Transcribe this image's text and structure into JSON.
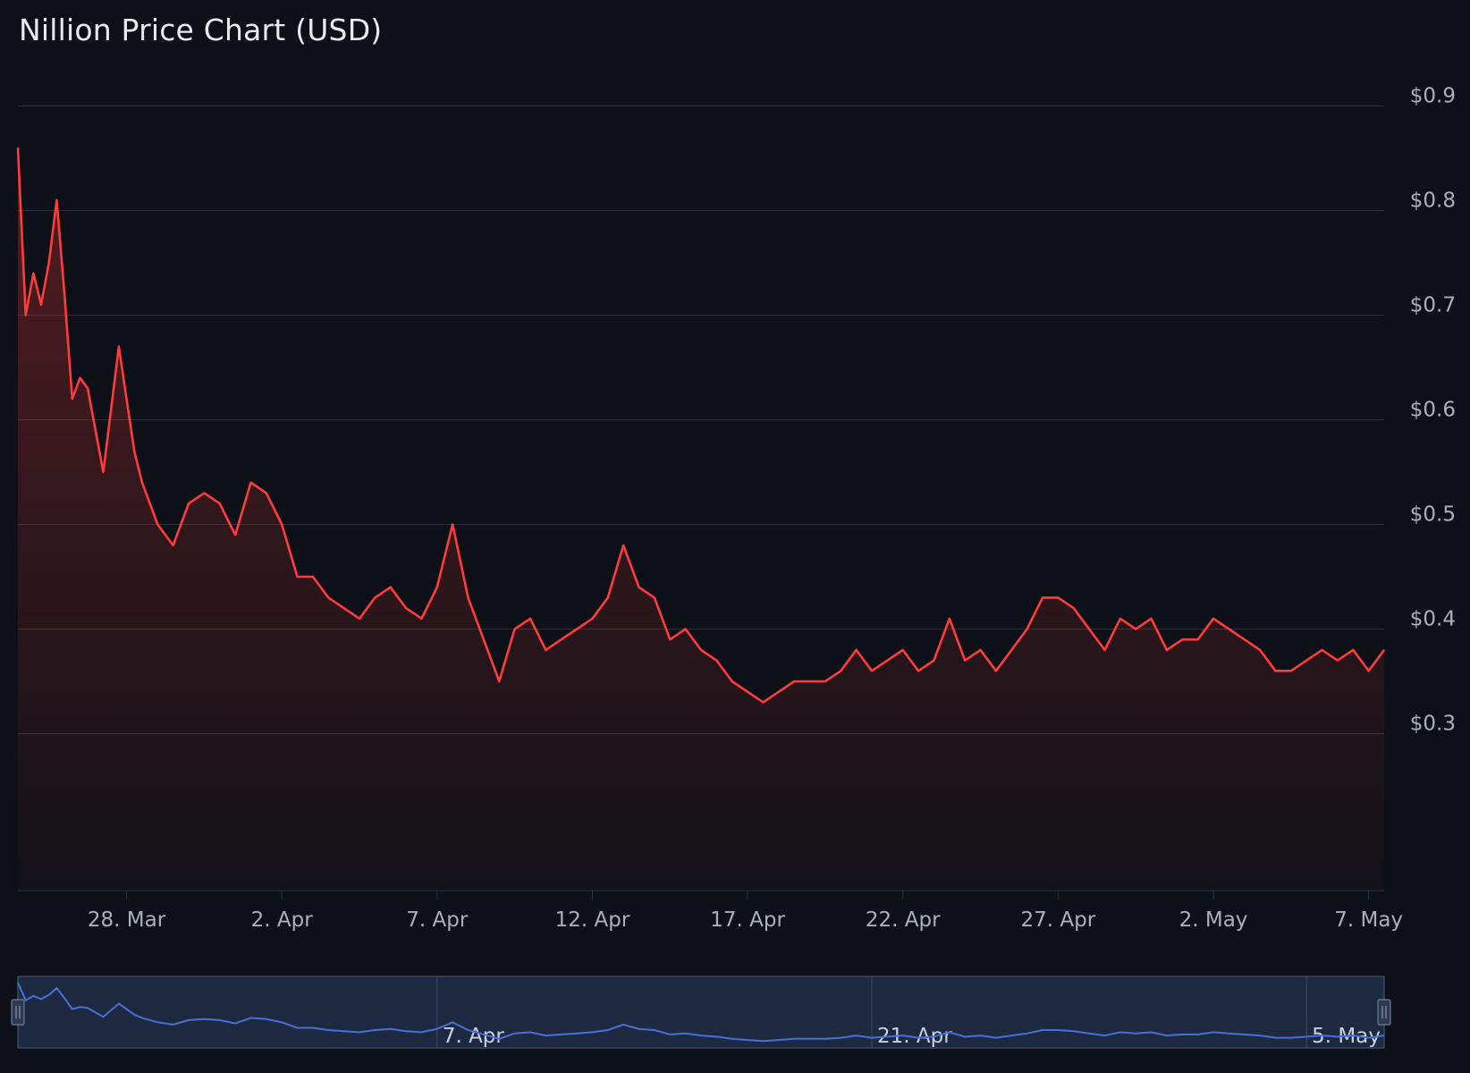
{
  "chart_data": {
    "type": "area",
    "title": "Nillion Price Chart (USD)",
    "xlabel": "",
    "ylabel": "",
    "ylim": [
      0.15,
      0.95
    ],
    "y_ticks": [
      0.3,
      0.4,
      0.5,
      0.6,
      0.7,
      0.8,
      0.9
    ],
    "y_tick_labels": [
      "$0.3",
      "$0.4",
      "$0.5",
      "$0.6",
      "$0.7",
      "$0.8",
      "$0.9"
    ],
    "x_ticks": [
      "2025-03-28",
      "2025-04-02",
      "2025-04-07",
      "2025-04-12",
      "2025-04-17",
      "2025-04-22",
      "2025-04-27",
      "2025-05-02",
      "2025-05-07"
    ],
    "x_tick_labels": [
      "28. Mar",
      "2. Apr",
      "7. Apr",
      "12. Apr",
      "17. Apr",
      "22. Apr",
      "27. Apr",
      "2. May",
      "7. May"
    ],
    "xlim": [
      "2025-03-24T12:00",
      "2025-05-07T12:00"
    ],
    "grid": true,
    "line_color": "#ff3b3b",
    "area_color": "#ff3b3b",
    "series": [
      {
        "x": [
          "2025-03-24T12:00",
          "2025-03-24T18:00",
          "2025-03-25T00:00",
          "2025-03-25T06:00",
          "2025-03-25T12:00",
          "2025-03-25T18:00",
          "2025-03-26T00:00",
          "2025-03-26T06:00",
          "2025-03-26T12:00",
          "2025-03-26T18:00",
          "2025-03-27T00:00",
          "2025-03-27T06:00",
          "2025-03-27T12:00",
          "2025-03-27T18:00",
          "2025-03-28T00:00",
          "2025-03-28T06:00",
          "2025-03-28T12:00",
          "2025-03-28T18:00",
          "2025-03-29T00:00",
          "2025-03-29T12:00",
          "2025-03-30T00:00",
          "2025-03-30T12:00",
          "2025-03-31T00:00",
          "2025-03-31T12:00",
          "2025-04-01T00:00",
          "2025-04-01T12:00",
          "2025-04-02T00:00",
          "2025-04-02T12:00",
          "2025-04-03T00:00",
          "2025-04-03T12:00",
          "2025-04-04T00:00",
          "2025-04-04T12:00",
          "2025-04-05T00:00",
          "2025-04-05T12:00",
          "2025-04-06T00:00",
          "2025-04-06T12:00",
          "2025-04-07T00:00",
          "2025-04-07T12:00",
          "2025-04-08T00:00",
          "2025-04-08T12:00",
          "2025-04-09T00:00",
          "2025-04-09T12:00",
          "2025-04-10T00:00",
          "2025-04-10T12:00",
          "2025-04-11T00:00",
          "2025-04-11T12:00",
          "2025-04-12T00:00",
          "2025-04-12T12:00",
          "2025-04-13T00:00",
          "2025-04-13T12:00",
          "2025-04-14T00:00",
          "2025-04-14T12:00",
          "2025-04-15T00:00",
          "2025-04-15T12:00",
          "2025-04-16T00:00",
          "2025-04-16T12:00",
          "2025-04-17T00:00",
          "2025-04-17T12:00",
          "2025-04-18T00:00",
          "2025-04-18T12:00",
          "2025-04-19T00:00",
          "2025-04-19T12:00",
          "2025-04-20T00:00",
          "2025-04-20T12:00",
          "2025-04-21T00:00",
          "2025-04-21T12:00",
          "2025-04-22T00:00",
          "2025-04-22T12:00",
          "2025-04-23T00:00",
          "2025-04-23T12:00",
          "2025-04-24T00:00",
          "2025-04-24T12:00",
          "2025-04-25T00:00",
          "2025-04-25T12:00",
          "2025-04-26T00:00",
          "2025-04-26T12:00",
          "2025-04-27T00:00",
          "2025-04-27T12:00",
          "2025-04-28T00:00",
          "2025-04-28T12:00",
          "2025-04-29T00:00",
          "2025-04-29T12:00",
          "2025-04-30T00:00",
          "2025-04-30T12:00",
          "2025-05-01T00:00",
          "2025-05-01T12:00",
          "2025-05-02T00:00",
          "2025-05-02T12:00",
          "2025-05-03T00:00",
          "2025-05-03T12:00",
          "2025-05-04T00:00",
          "2025-05-04T12:00",
          "2025-05-05T00:00",
          "2025-05-05T12:00",
          "2025-05-06T00:00",
          "2025-05-06T12:00",
          "2025-05-07T00:00",
          "2025-05-07T12:00"
        ],
        "values": [
          0.86,
          0.7,
          0.74,
          0.71,
          0.75,
          0.81,
          0.72,
          0.62,
          0.64,
          0.63,
          0.59,
          0.55,
          0.61,
          0.67,
          0.62,
          0.57,
          0.54,
          0.52,
          0.5,
          0.48,
          0.52,
          0.53,
          0.52,
          0.49,
          0.54,
          0.53,
          0.5,
          0.45,
          0.45,
          0.43,
          0.42,
          0.41,
          0.43,
          0.44,
          0.42,
          0.41,
          0.44,
          0.5,
          0.43,
          0.39,
          0.35,
          0.4,
          0.41,
          0.38,
          0.39,
          0.4,
          0.41,
          0.43,
          0.48,
          0.44,
          0.43,
          0.39,
          0.4,
          0.38,
          0.37,
          0.35,
          0.34,
          0.33,
          0.34,
          0.35,
          0.35,
          0.35,
          0.36,
          0.38,
          0.36,
          0.37,
          0.38,
          0.36,
          0.37,
          0.41,
          0.37,
          0.38,
          0.36,
          0.38,
          0.4,
          0.43,
          0.43,
          0.42,
          0.4,
          0.38,
          0.41,
          0.4,
          0.41,
          0.38,
          0.39,
          0.39,
          0.41,
          0.4,
          0.39,
          0.38,
          0.36,
          0.36,
          0.37,
          0.38,
          0.37,
          0.38,
          0.36,
          0.38
        ]
      }
    ],
    "navigator": {
      "x_tick_labels": [
        "7. Apr",
        "21. Apr",
        "5. May"
      ],
      "x_ticks": [
        "2025-04-07",
        "2025-04-21",
        "2025-05-05"
      ],
      "line_color": "#4a6fd4"
    }
  }
}
